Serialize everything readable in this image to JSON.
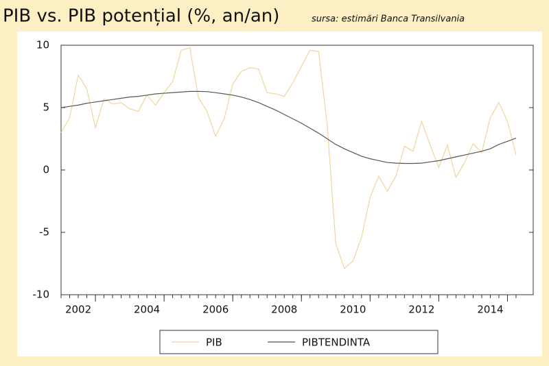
{
  "chart_data": {
    "type": "line",
    "title": "PIB vs. PIB potențial (%, an/an)",
    "subtitle": "sursa: estimări Banca Transilvania",
    "x": [
      2001,
      2001.25,
      2001.5,
      2001.75,
      2002,
      2002.25,
      2002.5,
      2002.75,
      2003,
      2003.25,
      2003.5,
      2003.75,
      2004,
      2004.25,
      2004.5,
      2004.75,
      2005,
      2005.25,
      2005.5,
      2005.75,
      2006,
      2006.25,
      2006.5,
      2006.75,
      2007,
      2007.25,
      2007.5,
      2007.75,
      2008,
      2008.25,
      2008.5,
      2008.75,
      2009,
      2009.25,
      2009.5,
      2009.75,
      2010,
      2010.25,
      2010.5,
      2010.75,
      2011,
      2011.25,
      2011.5,
      2011.75,
      2012,
      2012.25,
      2012.5,
      2012.75,
      2013,
      2013.25,
      2013.5,
      2013.75,
      2014,
      2014.25
    ],
    "series": [
      {
        "name": "PIB",
        "color": "#f0d49c",
        "values": [
          3.0,
          4.2,
          7.6,
          6.5,
          3.4,
          5.7,
          5.3,
          5.4,
          4.9,
          4.7,
          6.0,
          5.2,
          6.2,
          7.1,
          9.6,
          9.8,
          5.8,
          4.7,
          2.7,
          4.1,
          6.9,
          7.9,
          8.2,
          8.1,
          6.2,
          6.1,
          5.9,
          7.0,
          8.3,
          9.6,
          9.5,
          3.6,
          -5.9,
          -7.9,
          -7.3,
          -5.4,
          -2.2,
          -0.5,
          -1.7,
          -0.5,
          1.9,
          1.5,
          3.9,
          2.0,
          0.2,
          2.0,
          -0.6,
          0.6,
          2.1,
          1.4,
          4.2,
          5.4,
          3.9,
          1.2
        ]
      },
      {
        "name": "PIBTENDINTA",
        "color": "#555555",
        "values": [
          5.0,
          5.1,
          5.2,
          5.35,
          5.45,
          5.55,
          5.65,
          5.75,
          5.85,
          5.9,
          6.0,
          6.1,
          6.15,
          6.2,
          6.25,
          6.3,
          6.3,
          6.28,
          6.2,
          6.1,
          6.0,
          5.85,
          5.65,
          5.4,
          5.1,
          4.8,
          4.45,
          4.1,
          3.75,
          3.35,
          2.95,
          2.5,
          2.05,
          1.7,
          1.4,
          1.1,
          0.9,
          0.75,
          0.6,
          0.55,
          0.52,
          0.52,
          0.55,
          0.65,
          0.75,
          0.9,
          1.05,
          1.2,
          1.35,
          1.5,
          1.7,
          2.05,
          2.3,
          2.55
        ]
      }
    ],
    "xlim": [
      2001,
      2014.75
    ],
    "xticks": [
      2002,
      2004,
      2006,
      2008,
      2010,
      2012,
      2014
    ],
    "ylim": [
      -10,
      10
    ],
    "yticks": [
      10,
      5,
      0,
      -5,
      -10
    ],
    "legend": "bottom"
  }
}
